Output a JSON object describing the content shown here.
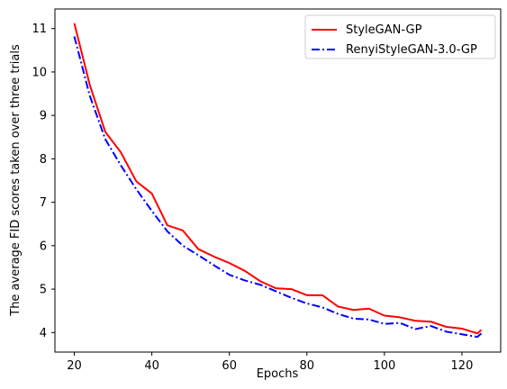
{
  "chart_data": {
    "type": "line",
    "title": "",
    "xlabel": "Epochs",
    "ylabel": "The average FID scores taken over three trials",
    "xlim": [
      15,
      130
    ],
    "ylim": [
      3.55,
      11.45
    ],
    "xticks": [
      20,
      40,
      60,
      80,
      100,
      120
    ],
    "yticks": [
      4,
      5,
      6,
      7,
      8,
      9,
      10,
      11
    ],
    "grid": false,
    "legend_position": "top-right",
    "series": [
      {
        "name": "StyleGAN-GP",
        "color": "#ff0000",
        "linestyle": "solid",
        "x": [
          20,
          24,
          28,
          32,
          36,
          40,
          44,
          48,
          52,
          56,
          60,
          64,
          68,
          72,
          76,
          80,
          84,
          88,
          92,
          96,
          100,
          104,
          108,
          112,
          116,
          120,
          124,
          125
        ],
        "y": [
          11.12,
          9.7,
          8.62,
          8.15,
          7.48,
          7.2,
          6.47,
          6.35,
          5.92,
          5.75,
          5.6,
          5.42,
          5.18,
          5.02,
          5.0,
          4.86,
          4.86,
          4.6,
          4.52,
          4.55,
          4.39,
          4.35,
          4.27,
          4.25,
          4.13,
          4.09,
          3.98,
          4.06
        ]
      },
      {
        "name": "RenyiStyleGAN-3.0-GP",
        "color": "#0000ff",
        "linestyle": "dashdot",
        "x": [
          20,
          24,
          28,
          32,
          36,
          40,
          44,
          48,
          52,
          56,
          60,
          64,
          68,
          72,
          76,
          80,
          84,
          88,
          92,
          96,
          100,
          104,
          108,
          112,
          116,
          120,
          124,
          125
        ],
        "y": [
          10.82,
          9.45,
          8.45,
          7.85,
          7.3,
          6.8,
          6.33,
          6.0,
          5.78,
          5.55,
          5.33,
          5.2,
          5.1,
          4.95,
          4.8,
          4.67,
          4.58,
          4.43,
          4.32,
          4.3,
          4.2,
          4.22,
          4.08,
          4.15,
          4.02,
          3.96,
          3.9,
          3.98
        ]
      }
    ]
  }
}
